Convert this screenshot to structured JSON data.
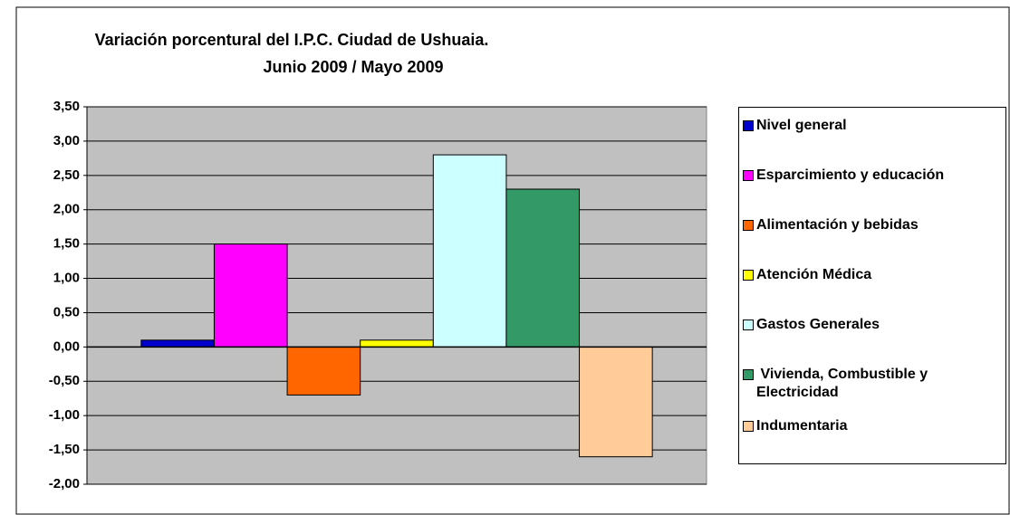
{
  "chart_data": {
    "type": "bar",
    "title": "Variación porcentural del I.P.C. Ciudad de Ushuaia.",
    "subtitle": "Junio 2009 / Mayo 2009",
    "categories": [
      null
    ],
    "series": [
      {
        "name": "Nivel general",
        "color": "#0000cc",
        "values": [
          0.1
        ]
      },
      {
        "name": "Esparcimiento y educación",
        "color": "#ff00ff",
        "values": [
          1.5
        ]
      },
      {
        "name": "Alimentación y bebidas",
        "color": "#ff6600",
        "values": [
          -0.7
        ]
      },
      {
        "name": "Atención Médica",
        "color": "#ffff00",
        "values": [
          0.1
        ]
      },
      {
        "name": "Gastos Generales",
        "color": "#ccffff",
        "values": [
          2.8
        ]
      },
      {
        "name": " Vivienda, Combustible y Electricidad",
        "color": "#339966",
        "values": [
          2.3
        ]
      },
      {
        "name": "Indumentaria",
        "color": "#ffcc99",
        "values": [
          -1.6
        ]
      }
    ],
    "ylim": [
      -2,
      3.5
    ],
    "yticks": [
      {
        "value": -2,
        "label": "-2,00"
      },
      {
        "value": -1.5,
        "label": "-1,50"
      },
      {
        "value": -1,
        "label": "-1,00"
      },
      {
        "value": -0.5,
        "label": "-0,50"
      },
      {
        "value": 0,
        "label": "0,00"
      },
      {
        "value": 0.5,
        "label": "0,50"
      },
      {
        "value": 1,
        "label": "1,00"
      },
      {
        "value": 1.5,
        "label": "1,50"
      },
      {
        "value": 2,
        "label": "2,00"
      },
      {
        "value": 2.5,
        "label": "2,50"
      },
      {
        "value": 3,
        "label": "3,00"
      },
      {
        "value": 3.5,
        "label": "3,50"
      }
    ],
    "grid": true,
    "legend": "right",
    "plot_background": "#c0c0c0"
  }
}
